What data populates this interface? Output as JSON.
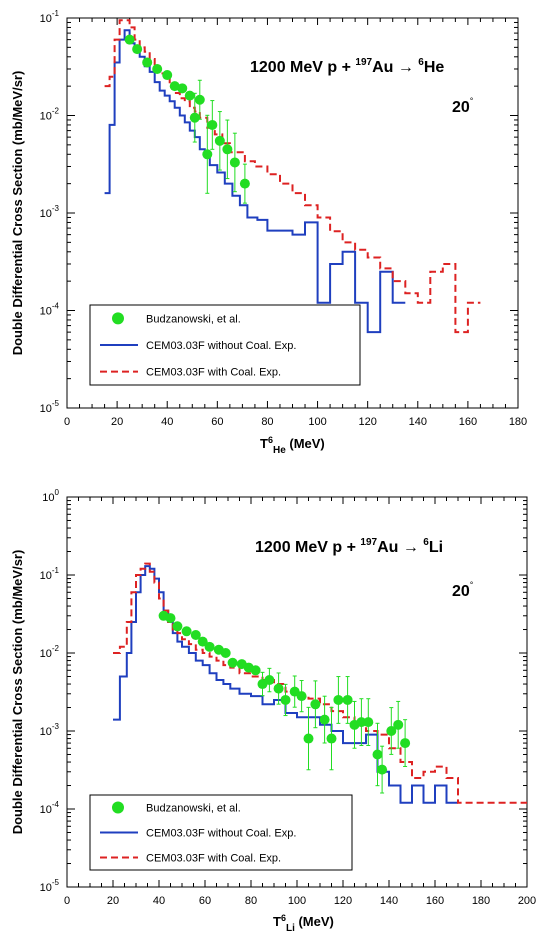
{
  "chart_data": [
    {
      "type": "line",
      "reaction": {
        "main": "1200 MeV p + ",
        "mass": "197",
        "target": "Au",
        "arrow": "→",
        "frag_mass": "6",
        "frag": "He"
      },
      "angle": "20",
      "xlabel": {
        "main": "T",
        "sup": "6",
        "sub": "He",
        "unit": " (MeV)"
      },
      "ylabel": "Double Differential Cross Section (mb/MeV/sr)",
      "xlim": [
        0,
        180
      ],
      "ylim": [
        1e-05,
        0.1
      ],
      "xticks": [
        "0",
        "20",
        "40",
        "60",
        "80",
        "100",
        "120",
        "140",
        "160",
        "180"
      ],
      "yticks": [
        {
          "base": "10",
          "exp": "-5"
        },
        {
          "base": "10",
          "exp": "-4"
        },
        {
          "base": "10",
          "exp": "-3"
        },
        {
          "base": "10",
          "exp": "-2"
        },
        {
          "base": "10",
          "exp": "-1"
        }
      ],
      "legend": [
        "Budzanowski, et al.",
        "CEM03.03F without Coal. Exp.",
        "CEM03.03F with Coal. Exp."
      ],
      "colors": {
        "data": "#22dd22",
        "blue": "#1f3fbf",
        "red": "#dd2222"
      },
      "experiment": [
        {
          "x": 25,
          "y": 0.06,
          "err": 0
        },
        {
          "x": 28,
          "y": 0.048,
          "err": 0
        },
        {
          "x": 32,
          "y": 0.035,
          "err": 0
        },
        {
          "x": 36,
          "y": 0.03,
          "err": 0
        },
        {
          "x": 40,
          "y": 0.026,
          "err": 0
        },
        {
          "x": 43,
          "y": 0.02,
          "err": 0
        },
        {
          "x": 46,
          "y": 0.019,
          "err": 0
        },
        {
          "x": 49,
          "y": 0.016,
          "err": 0
        },
        {
          "x": 51,
          "y": 0.0095,
          "err": 0.25
        },
        {
          "x": 53,
          "y": 0.0145,
          "err": 0.2
        },
        {
          "x": 56,
          "y": 0.004,
          "err": 0.4
        },
        {
          "x": 58,
          "y": 0.008,
          "err": 0.25
        },
        {
          "x": 61,
          "y": 0.0055,
          "err": 0.3
        },
        {
          "x": 64,
          "y": 0.0045,
          "err": 0.3
        },
        {
          "x": 67,
          "y": 0.0033,
          "err": 0.3
        },
        {
          "x": 71,
          "y": 0.002,
          "err": 0.2
        }
      ],
      "series": [
        {
          "name": "CEM03.03F without Coal. Exp.",
          "edges": [
            15,
            17,
            19,
            21,
            23,
            25,
            27,
            29,
            31,
            33,
            35,
            37,
            39,
            41,
            43,
            45,
            47,
            49,
            51,
            53,
            55,
            57,
            60,
            63,
            66,
            69,
            72,
            76,
            80,
            85,
            90,
            95,
            100,
            105,
            110,
            115,
            120,
            125,
            130,
            135
          ],
          "values": [
            0.0016,
            0.008,
            0.035,
            0.06,
            0.075,
            0.055,
            0.05,
            0.04,
            0.032,
            0.028,
            0.022,
            0.018,
            0.016,
            0.014,
            0.012,
            0.01,
            0.0085,
            0.007,
            0.006,
            0.0045,
            0.0038,
            0.0031,
            0.0026,
            0.002,
            0.0015,
            0.0012,
            0.0009,
            0.00085,
            0.00066,
            0.00066,
            0.0006,
            0.0008,
            0.00012,
            0.0003,
            0.0004,
            0.00012,
            6e-05,
            0.00025,
            0.00012
          ]
        },
        {
          "name": "CEM03.03F with Coal. Exp.",
          "edges": [
            15,
            17,
            19,
            21,
            23,
            25,
            27,
            29,
            31,
            33,
            35,
            37,
            39,
            41,
            43,
            45,
            47,
            49,
            51,
            53,
            56,
            59,
            62,
            65,
            68,
            71,
            75,
            80,
            85,
            90,
            95,
            100,
            105,
            110,
            115,
            120,
            125,
            130,
            135,
            140,
            145,
            150,
            155,
            160,
            165
          ],
          "values": [
            0.02,
            0.025,
            0.06,
            0.095,
            0.095,
            0.08,
            0.06,
            0.05,
            0.045,
            0.038,
            0.032,
            0.027,
            0.024,
            0.02,
            0.017,
            0.015,
            0.014,
            0.012,
            0.011,
            0.0095,
            0.0075,
            0.0064,
            0.0052,
            0.0042,
            0.0042,
            0.0034,
            0.003,
            0.0025,
            0.002,
            0.0016,
            0.0012,
            0.0009,
            0.00065,
            0.0005,
            0.00042,
            0.00035,
            0.00027,
            0.0002,
            0.00015,
            0.00012,
            0.00025,
            0.0003,
            6e-05,
            0.00012
          ]
        }
      ]
    },
    {
      "type": "line",
      "reaction": {
        "main": "1200 MeV p + ",
        "mass": "197",
        "target": "Au",
        "arrow": "→",
        "frag_mass": "6",
        "frag": "Li"
      },
      "angle": "20",
      "xlabel": {
        "main": "T",
        "sup": "6",
        "sub": "Li",
        "unit": " (MeV)"
      },
      "ylabel": "Double Differential Cross Section (mb/MeV/sr)",
      "xlim": [
        0,
        200
      ],
      "ylim": [
        1e-05,
        1
      ],
      "xticks": [
        "0",
        "20",
        "40",
        "60",
        "80",
        "100",
        "120",
        "140",
        "160",
        "180",
        "200"
      ],
      "yticks": [
        {
          "base": "10",
          "exp": "-5"
        },
        {
          "base": "10",
          "exp": "-4"
        },
        {
          "base": "10",
          "exp": "-3"
        },
        {
          "base": "10",
          "exp": "-2"
        },
        {
          "base": "10",
          "exp": "-1"
        },
        {
          "base": "10",
          "exp": "0"
        }
      ],
      "legend": [
        "Budzanowski, et al.",
        "CEM03.03F without Coal. Exp.",
        "CEM03.03F with Coal. Exp."
      ],
      "colors": {
        "data": "#22dd22",
        "blue": "#1f3fbf",
        "red": "#dd2222"
      },
      "experiment": [
        {
          "x": 42,
          "y": 0.03,
          "err": 0
        },
        {
          "x": 45,
          "y": 0.028,
          "err": 0
        },
        {
          "x": 48,
          "y": 0.022,
          "err": 0
        },
        {
          "x": 52,
          "y": 0.019,
          "err": 0
        },
        {
          "x": 56,
          "y": 0.017,
          "err": 0
        },
        {
          "x": 59,
          "y": 0.014,
          "err": 0
        },
        {
          "x": 62,
          "y": 0.012,
          "err": 0
        },
        {
          "x": 66,
          "y": 0.011,
          "err": 0
        },
        {
          "x": 69,
          "y": 0.01,
          "err": 0
        },
        {
          "x": 72,
          "y": 0.0075,
          "err": 0
        },
        {
          "x": 76,
          "y": 0.0072,
          "err": 0
        },
        {
          "x": 79,
          "y": 0.0065,
          "err": 0
        },
        {
          "x": 82,
          "y": 0.006,
          "err": 0
        },
        {
          "x": 85,
          "y": 0.004,
          "err": 0.15
        },
        {
          "x": 88,
          "y": 0.0045,
          "err": 0.15
        },
        {
          "x": 92,
          "y": 0.0035,
          "err": 0.2
        },
        {
          "x": 95,
          "y": 0.0025,
          "err": 0.2
        },
        {
          "x": 99,
          "y": 0.0032,
          "err": 0.2
        },
        {
          "x": 102,
          "y": 0.0028,
          "err": 0.2
        },
        {
          "x": 105,
          "y": 0.0008,
          "err": 0.4
        },
        {
          "x": 108,
          "y": 0.0022,
          "err": 0.3
        },
        {
          "x": 112,
          "y": 0.0014,
          "err": 0.3
        },
        {
          "x": 115,
          "y": 0.0008,
          "err": 0.4
        },
        {
          "x": 118,
          "y": 0.0025,
          "err": 0.3
        },
        {
          "x": 122,
          "y": 0.0025,
          "err": 0.3
        },
        {
          "x": 125,
          "y": 0.0012,
          "err": 0.3
        },
        {
          "x": 128,
          "y": 0.0013,
          "err": 0.3
        },
        {
          "x": 131,
          "y": 0.0013,
          "err": 0.3
        },
        {
          "x": 135,
          "y": 0.0005,
          "err": 0.4
        },
        {
          "x": 137,
          "y": 0.00032,
          "err": 0.3
        },
        {
          "x": 141,
          "y": 0.001,
          "err": 0.3
        },
        {
          "x": 144,
          "y": 0.0012,
          "err": 0.3
        },
        {
          "x": 147,
          "y": 0.0007,
          "err": 0.3
        }
      ],
      "series": [
        {
          "name": "CEM03.03F without Coal. Exp.",
          "edges": [
            20,
            23,
            26,
            28,
            30,
            32,
            34,
            36,
            38,
            40,
            42,
            44,
            46,
            48,
            50,
            53,
            56,
            59,
            62,
            65,
            68,
            71,
            75,
            80,
            85,
            90,
            95,
            100,
            105,
            110,
            115,
            120,
            125,
            130,
            135,
            140,
            145,
            150,
            155,
            160,
            165,
            170
          ],
          "values": [
            0.0014,
            0.005,
            0.01,
            0.025,
            0.06,
            0.1,
            0.13,
            0.12,
            0.09,
            0.06,
            0.035,
            0.025,
            0.018,
            0.014,
            0.012,
            0.01,
            0.008,
            0.007,
            0.0055,
            0.0045,
            0.004,
            0.0035,
            0.003,
            0.0028,
            0.0022,
            0.0025,
            0.0017,
            0.0015,
            0.0015,
            0.0012,
            0.001,
            0.0007,
            0.0007,
            0.0009,
            0.0003,
            0.0002,
            0.00012,
            0.0002,
            0.00012,
            0.0002,
            0.00012
          ]
        },
        {
          "name": "CEM03.03F with Coal. Exp.",
          "edges": [
            20,
            23,
            26,
            28,
            30,
            32,
            34,
            36,
            38,
            40,
            42,
            44,
            46,
            48,
            50,
            53,
            56,
            59,
            62,
            65,
            68,
            71,
            75,
            80,
            85,
            90,
            95,
            100,
            105,
            110,
            115,
            120,
            125,
            130,
            135,
            140,
            145,
            150,
            155,
            160,
            165,
            170,
            175,
            180,
            185,
            190,
            195,
            200
          ],
          "values": [
            0.01,
            0.012,
            0.025,
            0.06,
            0.1,
            0.12,
            0.14,
            0.11,
            0.08,
            0.05,
            0.035,
            0.025,
            0.02,
            0.018,
            0.015,
            0.013,
            0.011,
            0.01,
            0.009,
            0.008,
            0.007,
            0.0065,
            0.0055,
            0.005,
            0.0045,
            0.004,
            0.0032,
            0.0028,
            0.0026,
            0.0022,
            0.0018,
            0.0015,
            0.0013,
            0.001,
            0.0009,
            0.0006,
            0.0004,
            0.00025,
            0.0003,
            0.00035,
            0.00025,
            0.00012,
            0.00012,
            0.00012,
            0.00012,
            0.00012,
            0.00012
          ]
        }
      ]
    }
  ]
}
